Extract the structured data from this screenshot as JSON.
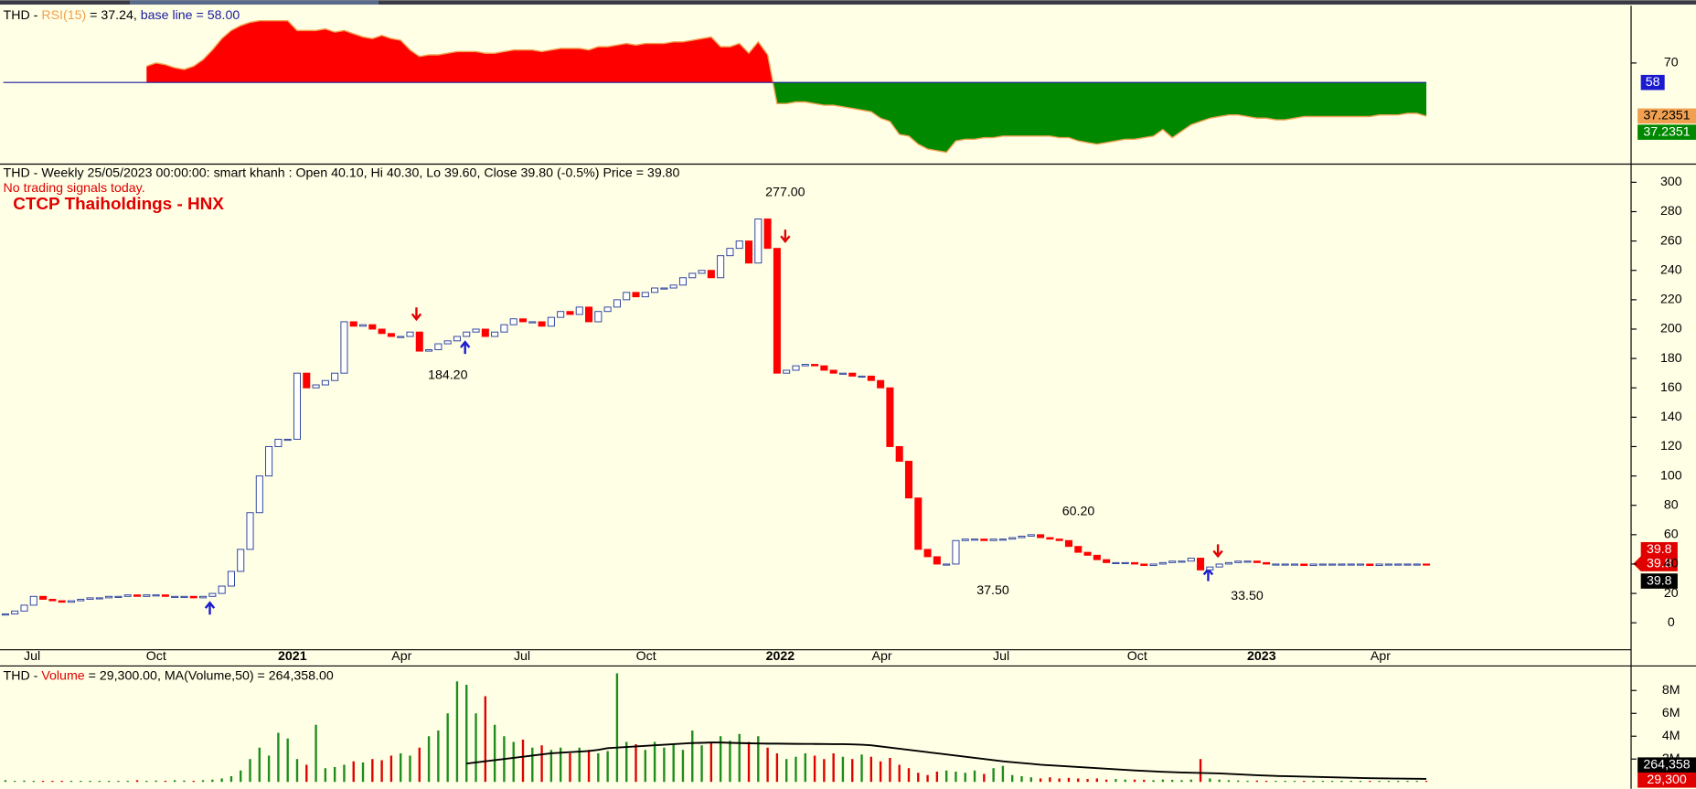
{
  "chart_data": [
    {
      "type": "line",
      "title_parts": [
        "THD - ",
        "RSI(15)",
        " = 37.24, ",
        "base line = 58.00"
      ],
      "values": [
        null,
        null,
        null,
        null,
        null,
        null,
        null,
        null,
        null,
        null,
        null,
        null,
        null,
        null,
        null,
        68,
        70,
        69,
        67,
        66,
        68,
        72,
        78,
        85,
        90,
        93,
        95,
        96,
        96,
        96,
        96,
        90,
        90,
        90,
        91,
        89,
        90,
        88,
        86,
        85,
        87,
        85,
        84,
        78,
        74,
        75,
        75,
        76,
        77,
        77,
        77,
        76,
        76,
        77,
        78,
        78,
        78,
        77,
        78,
        79,
        79,
        79,
        78,
        80,
        80,
        81,
        82,
        81,
        82,
        82,
        82,
        83,
        83,
        84,
        85,
        86,
        80,
        80,
        82,
        76,
        83,
        75,
        45,
        45,
        46,
        46,
        45,
        44,
        44,
        43,
        42,
        41,
        40,
        36,
        34,
        26,
        25,
        20,
        17,
        16,
        15,
        22,
        23,
        23,
        24,
        24,
        25,
        25,
        25,
        25,
        25,
        25,
        24,
        24,
        22,
        21,
        20,
        21,
        22,
        23,
        23,
        24,
        25,
        29,
        24,
        28,
        32,
        34,
        36,
        37,
        38,
        38,
        37,
        36,
        36,
        35,
        35,
        36,
        37,
        37,
        37,
        37,
        37,
        37,
        37,
        37,
        38,
        38,
        38,
        39,
        39,
        37.24
      ],
      "base_line": 58,
      "line_color": "#f0a050",
      "above_color": "#ff0000",
      "below_color": "#008800",
      "base_color": "#1a1aa0",
      "ylim": [
        8.7,
        105.3
      ],
      "yticks": [
        70
      ],
      "axis_labels": [
        "58",
        "37.2351",
        "37.2351"
      ]
    },
    {
      "type": "candlestick",
      "title": "THD - Weekly 25/05/2023 00:00:00: smart khanh : Open 40.10, Hi 40.30, Lo 39.60, Close 39.80 (-0.5%) Price = 39.80",
      "subtitle": "No trading signals today.",
      "name": "CTCP Thaiholdings - HNX",
      "close": [
        6,
        8,
        12,
        18,
        16,
        15,
        14,
        15,
        16,
        17,
        17,
        18,
        18,
        19,
        18,
        19,
        19,
        18,
        18,
        18,
        17,
        18,
        20,
        25,
        35,
        50,
        75,
        100,
        120,
        125,
        125,
        170,
        160,
        162,
        165,
        170,
        205,
        202,
        203,
        200,
        197,
        195,
        195,
        198,
        185,
        186,
        190,
        192,
        195,
        198,
        200,
        195,
        198,
        203,
        207,
        205,
        205,
        202,
        208,
        212,
        210,
        215,
        205,
        212,
        215,
        220,
        225,
        222,
        225,
        228,
        228,
        230,
        235,
        238,
        240,
        235,
        250,
        255,
        260,
        245,
        275,
        255,
        170,
        172,
        175,
        176,
        175,
        172,
        170,
        170,
        168,
        168,
        165,
        160,
        120,
        110,
        85,
        50,
        45,
        40,
        40,
        56,
        57,
        57,
        56,
        57,
        57,
        58,
        59,
        60,
        58,
        57,
        56,
        52,
        48,
        46,
        43,
        41,
        41,
        41,
        40,
        39,
        40,
        41,
        42,
        42,
        44,
        36,
        38,
        40,
        41,
        42,
        42,
        41,
        40,
        40,
        40,
        40,
        39,
        40,
        40,
        40,
        40,
        40,
        40,
        39,
        40,
        40,
        40,
        40,
        40,
        39.8
      ],
      "up_color": "#ffffff",
      "up_stroke": "#2a3f9a",
      "down_color": "#ff0000",
      "ylim": [
        -18,
        312
      ],
      "yticks": [
        0,
        20,
        40,
        60,
        80,
        100,
        120,
        140,
        160,
        180,
        200,
        220,
        240,
        260,
        280,
        300
      ],
      "annotations": [
        "277.00",
        "184.20",
        "37.50",
        "60.20",
        "33.50"
      ],
      "price_labels": [
        "39.8",
        "39.8",
        "39.8"
      ],
      "x_labels": [
        "Jul",
        "Oct",
        "2021",
        "Apr",
        "Jul",
        "Oct",
        "2022",
        "Apr",
        "Jul",
        "Oct",
        "2023",
        "Apr"
      ]
    },
    {
      "type": "bar",
      "title_parts": [
        "THD - ",
        "Volume",
        " = 29,300.00, MA(Volume,50) = 264,358.00"
      ],
      "values": [
        150000,
        80000,
        120000,
        50000,
        40000,
        30000,
        30000,
        30000,
        30000,
        30000,
        20000,
        20000,
        20000,
        20000,
        150000,
        100000,
        120000,
        100000,
        150000,
        120000,
        100000,
        150000,
        200000,
        300000,
        500000,
        1000000,
        2000000,
        3000000,
        2300000,
        4300000,
        3800000,
        2000000,
        1500000,
        5000000,
        1200000,
        1300000,
        1500000,
        1800000,
        1700000,
        2000000,
        1900000,
        2300000,
        2500000,
        2300000,
        3000000,
        4000000,
        4500000,
        6000000,
        8800000,
        8500000,
        6000000,
        7500000,
        5000000,
        4000000,
        3500000,
        3700000,
        3000000,
        3200000,
        2800000,
        3000000,
        2500000,
        3000000,
        2800000,
        2500000,
        2700000,
        9500000,
        3500000,
        3300000,
        2800000,
        3500000,
        3000000,
        3300000,
        2800000,
        4500000,
        3200000,
        3500000,
        4000000,
        3600000,
        4200000,
        3500000,
        4000000,
        3000000,
        2500000,
        2000000,
        2200000,
        2500000,
        2300000,
        2000000,
        2500000,
        2200000,
        2000000,
        2400000,
        2200000,
        1800000,
        2100000,
        1500000,
        1200000,
        800000,
        600000,
        900000,
        1000000,
        900000,
        800000,
        1000000,
        700000,
        1200000,
        1400000,
        600000,
        500000,
        400000,
        300000,
        400000,
        300000,
        350000,
        300000,
        250000,
        300000,
        200000,
        250000,
        200000,
        200000,
        180000,
        150000,
        200000,
        180000,
        150000,
        200000,
        2000000,
        300000,
        200000,
        150000,
        120000,
        100000,
        120000,
        100000,
        90000,
        100000,
        80000,
        90000,
        80000,
        70000,
        80000,
        60000,
        70000,
        60000,
        50000,
        60000,
        50000,
        40000,
        50000,
        40000,
        29300
      ],
      "ma_values": [
        null,
        null,
        null,
        null,
        null,
        null,
        null,
        null,
        null,
        null,
        null,
        null,
        null,
        null,
        null,
        null,
        null,
        null,
        null,
        null,
        null,
        null,
        null,
        null,
        null,
        null,
        null,
        null,
        null,
        null,
        null,
        null,
        null,
        null,
        null,
        null,
        null,
        null,
        null,
        null,
        null,
        null,
        null,
        null,
        null,
        null,
        null,
        null,
        null,
        1600000,
        1700000,
        1800000,
        1900000,
        2000000,
        2100000,
        2200000,
        2300000,
        2400000,
        2500000,
        2550000,
        2600000,
        2650000,
        2700000,
        2800000,
        2950000,
        3000000,
        3050000,
        3100000,
        3150000,
        3200000,
        3250000,
        3300000,
        3350000,
        3400000,
        3420000,
        3450000,
        3450000,
        3420000,
        3400000,
        3380000,
        3360000,
        3350000,
        3350000,
        3340000,
        3330000,
        3320000,
        3320000,
        3310000,
        3300000,
        3300000,
        3280000,
        3250000,
        3200000,
        3100000,
        3000000,
        2900000,
        2800000,
        2700000,
        2600000,
        2500000,
        2400000,
        2300000,
        2200000,
        2100000,
        2000000,
        1900000,
        1800000,
        1720000,
        1650000,
        1580000,
        1500000,
        1450000,
        1400000,
        1350000,
        1300000,
        1250000,
        1200000,
        1150000,
        1100000,
        1050000,
        1000000,
        960000,
        920000,
        880000,
        850000,
        820000,
        800000,
        780000,
        760000,
        740000,
        700000,
        660000,
        620000,
        580000,
        550000,
        520000,
        500000,
        480000,
        460000,
        440000,
        420000,
        400000,
        380000,
        360000,
        340000,
        320000,
        310000,
        300000,
        290000,
        280000,
        270000,
        264358
      ],
      "up_color": "#1e8c1e",
      "down_color": "#e00000",
      "ma_color": "#000000",
      "ylim": [
        -600000,
        10100000
      ],
      "yticks": [
        {
          "value": 2000000,
          "label": "2M"
        },
        {
          "value": 4000000,
          "label": "4M"
        },
        {
          "value": 6000000,
          "label": "6M"
        },
        {
          "value": 8000000,
          "label": "8M"
        }
      ],
      "axis_labels": [
        "264,358",
        "29,300"
      ]
    }
  ]
}
